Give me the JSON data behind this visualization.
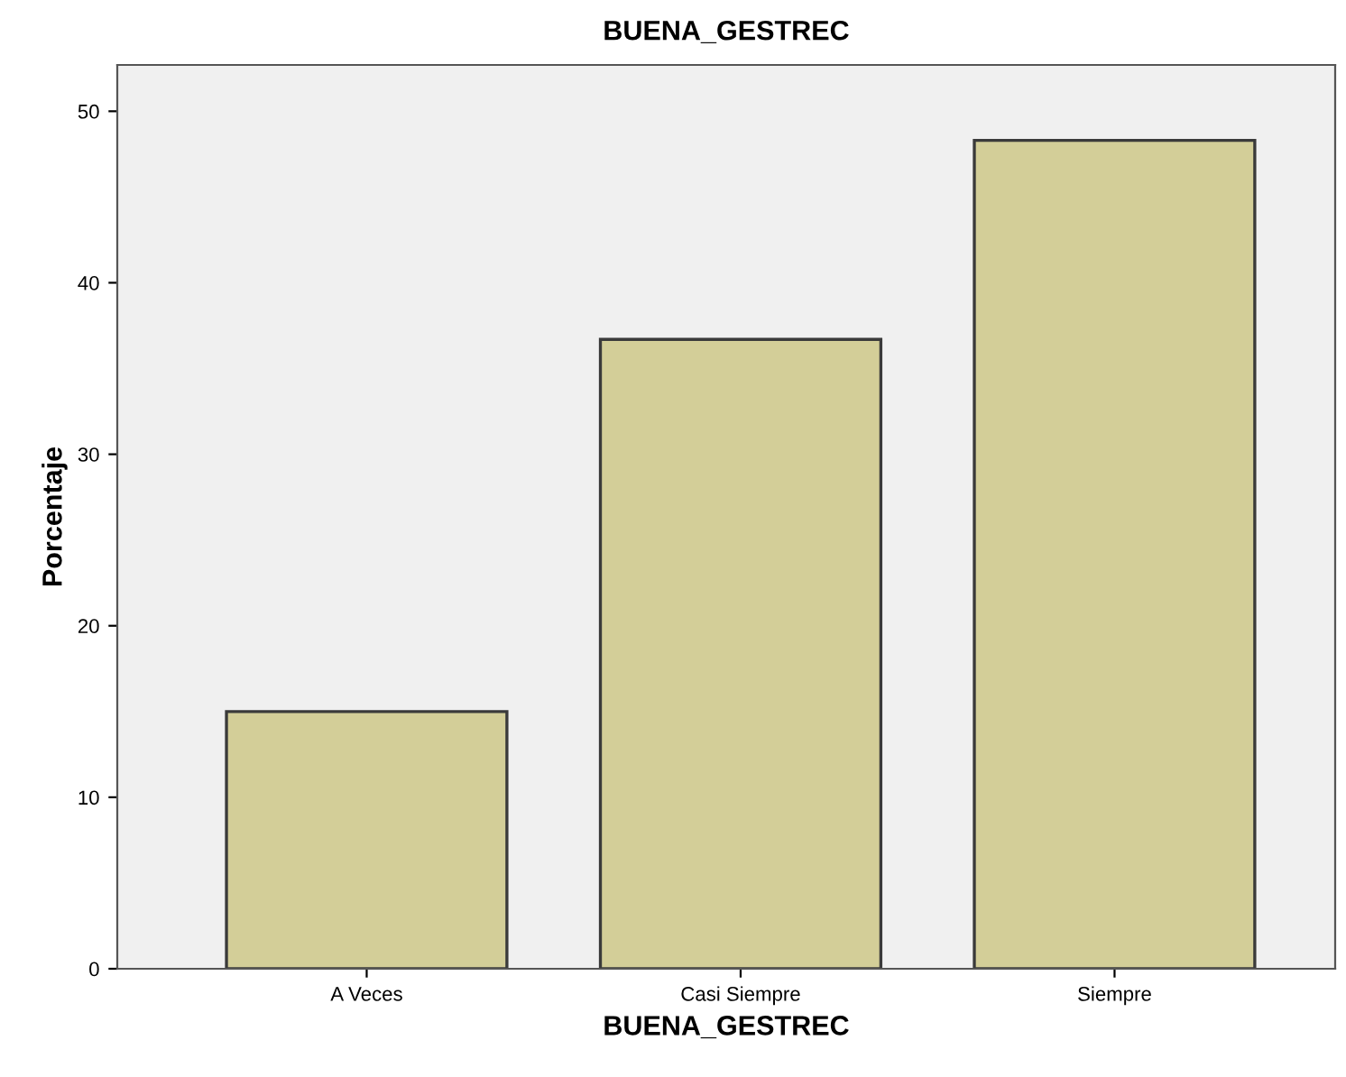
{
  "chart_data": {
    "type": "bar",
    "title": "BUENA_GESTREC",
    "xlabel": "BUENA_GESTREC",
    "ylabel": "Porcentaje",
    "categories": [
      "A Veces",
      "Casi Siempre",
      "Siempre"
    ],
    "values": [
      15.0,
      36.7,
      48.3
    ],
    "color": "#d3ce98",
    "ylim": [
      0,
      52.7
    ],
    "yticks": [
      0,
      10,
      20,
      30,
      40,
      50
    ],
    "grid": false,
    "legend": false
  }
}
